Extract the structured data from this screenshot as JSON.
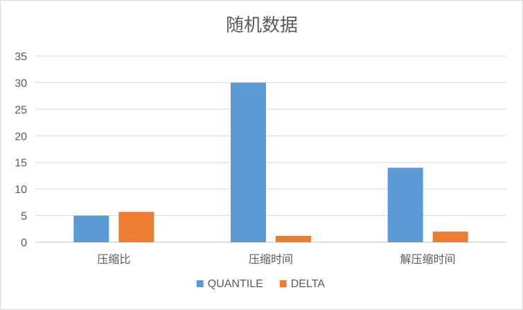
{
  "chart_data": {
    "type": "bar",
    "title": "随机数据",
    "categories": [
      "压缩比",
      "压缩时间",
      "解压缩时间"
    ],
    "series": [
      {
        "name": "QUANTILE",
        "color": "#5b9bd5",
        "values": [
          5,
          30,
          14
        ]
      },
      {
        "name": "DELTA",
        "color": "#ed7d31",
        "values": [
          5.7,
          1.2,
          2.0
        ]
      }
    ],
    "ylim": [
      0,
      35
    ],
    "yticks": [
      0,
      5,
      10,
      15,
      20,
      25,
      30,
      35
    ],
    "grid": true,
    "legend_position": "bottom",
    "xlabel": "",
    "ylabel": ""
  }
}
